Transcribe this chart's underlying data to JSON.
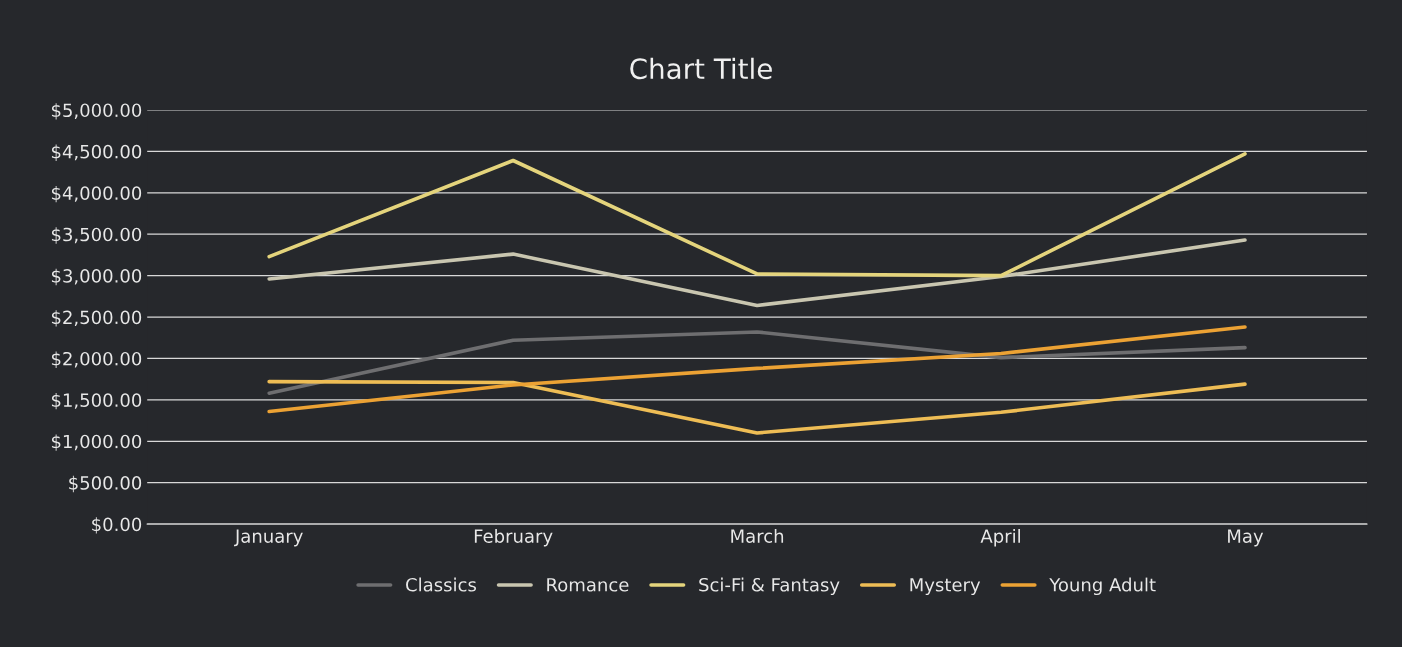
{
  "chart_data": {
    "type": "line",
    "title": "Chart Title",
    "categories": [
      "January",
      "February",
      "March",
      "April",
      "May"
    ],
    "series": [
      {
        "name": "Classics",
        "color": "#6e6e70",
        "values": [
          1580,
          2220,
          2320,
          2010,
          2130
        ]
      },
      {
        "name": "Romance",
        "color": "#c9c6b0",
        "values": [
          2960,
          3260,
          2640,
          2990,
          3430
        ]
      },
      {
        "name": "Sci-Fi & Fantasy",
        "color": "#e4d47c",
        "values": [
          3230,
          4390,
          3020,
          3000,
          4470
        ]
      },
      {
        "name": "Mystery",
        "color": "#eebd55",
        "values": [
          1720,
          1710,
          1100,
          1350,
          1690
        ]
      },
      {
        "name": "Young Adult",
        "color": "#eca234",
        "values": [
          1360,
          1680,
          1880,
          2060,
          2380
        ]
      }
    ],
    "ylim": [
      0,
      5000
    ],
    "yticks": [
      {
        "value": 0,
        "label": "$0.00"
      },
      {
        "value": 500,
        "label": "$500.00"
      },
      {
        "value": 1000,
        "label": "$1,000.00"
      },
      {
        "value": 1500,
        "label": "$1,500.00"
      },
      {
        "value": 2000,
        "label": "$2,000.00"
      },
      {
        "value": 2500,
        "label": "$2,500.00"
      },
      {
        "value": 3000,
        "label": "$3,000.00"
      },
      {
        "value": 3500,
        "label": "$3,500.00"
      },
      {
        "value": 4000,
        "label": "$4,000.00"
      },
      {
        "value": 4500,
        "label": "$4,500.00"
      },
      {
        "value": 5000,
        "label": "$5,000.00"
      }
    ],
    "grid": "y",
    "legend": "bottom",
    "marker": "none",
    "line_style": "solid"
  }
}
